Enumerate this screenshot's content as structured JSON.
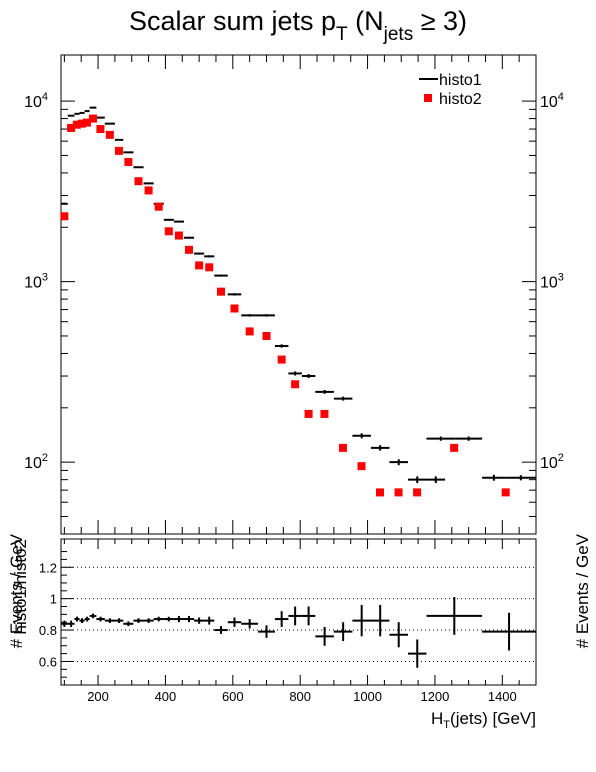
{
  "chart_data": [
    {
      "type": "scatter",
      "panel": "main",
      "title": {
        "prefix": "Scalar sum jets p",
        "sub": "T",
        "mid": " (N",
        "sub2": "jets",
        "suffix": " ≥ 3)"
      },
      "ylabel": "# Events / GeV",
      "ylabel_right": "# Events / GeV",
      "yscale": "log",
      "xlim": [
        90,
        1500
      ],
      "ylim": [
        40,
        18000
      ],
      "y_ticks": [
        {
          "value": 100,
          "base": "10",
          "exp": "2"
        },
        {
          "value": 1000,
          "base": "10",
          "exp": "3"
        },
        {
          "value": 10000,
          "base": "10",
          "exp": "4"
        }
      ],
      "legend_position": "top-right",
      "series": [
        {
          "name": "histo1",
          "style": "errorbar",
          "color": "#000000",
          "points": [
            [
              90,
              110,
              2700
            ],
            [
              110,
              130,
              8300
            ],
            [
              130,
              145,
              8500
            ],
            [
              145,
              160,
              8600
            ],
            [
              160,
              175,
              8800
            ],
            [
              175,
              195,
              9200
            ],
            [
              195,
              220,
              8100
            ],
            [
              220,
              250,
              7500
            ],
            [
              250,
              275,
              6100
            ],
            [
              275,
              305,
              5200
            ],
            [
              305,
              335,
              4300
            ],
            [
              335,
              365,
              3500
            ],
            [
              365,
              395,
              2700
            ],
            [
              395,
              425,
              2200
            ],
            [
              425,
              455,
              2150
            ],
            [
              455,
              485,
              1750
            ],
            [
              485,
              515,
              1430
            ],
            [
              515,
              545,
              1380
            ],
            [
              545,
              585,
              1080
            ],
            [
              585,
              625,
              850
            ],
            [
              625,
              675,
              650
            ],
            [
              675,
              725,
              650
            ],
            [
              725,
              765,
              440
            ],
            [
              765,
              805,
              310
            ],
            [
              805,
              845,
              300
            ],
            [
              845,
              900,
              245
            ],
            [
              900,
              955,
              225
            ],
            [
              955,
              1010,
              140
            ],
            [
              1010,
              1065,
              120
            ],
            [
              1065,
              1120,
              100
            ],
            [
              1120,
              1175,
              80
            ],
            [
              1175,
              1230,
              80
            ],
            [
              1175,
              1260,
              135
            ],
            [
              1260,
              1340,
              135
            ],
            [
              1340,
              1410,
              82
            ],
            [
              1410,
              1500,
              82
            ]
          ]
        },
        {
          "name": "histo2",
          "style": "marker",
          "color": "#ff0000",
          "points": [
            [
              100,
              2300
            ],
            [
              120,
              7100
            ],
            [
              137,
              7400
            ],
            [
              152,
              7500
            ],
            [
              167,
              7600
            ],
            [
              185,
              8000
            ],
            [
              207,
              7000
            ],
            [
              235,
              6500
            ],
            [
              262,
              5300
            ],
            [
              290,
              4600
            ],
            [
              320,
              3600
            ],
            [
              350,
              3200
            ],
            [
              380,
              2600
            ],
            [
              410,
              1900
            ],
            [
              440,
              1800
            ],
            [
              470,
              1500
            ],
            [
              500,
              1230
            ],
            [
              530,
              1200
            ],
            [
              565,
              880
            ],
            [
              605,
              710
            ],
            [
              650,
              530
            ],
            [
              700,
              500
            ],
            [
              745,
              370
            ],
            [
              785,
              270
            ],
            [
              825,
              185
            ],
            [
              872,
              185
            ],
            [
              927,
              120
            ],
            [
              982,
              95
            ],
            [
              1037,
              68
            ],
            [
              1092,
              68
            ],
            [
              1147,
              68
            ],
            [
              1257,
              120
            ],
            [
              1410,
              68
            ]
          ]
        }
      ]
    },
    {
      "type": "scatter",
      "panel": "ratio",
      "xlabel": {
        "prefix": "H",
        "sub": "T",
        "suffix": "(jets) [GeV]"
      },
      "ylabel": "histo1/histo2",
      "yscale": "linear",
      "xlim": [
        90,
        1500
      ],
      "ylim": [
        0.45,
        1.38
      ],
      "x_ticks": [
        "200",
        "400",
        "600",
        "800",
        "1000",
        "1200",
        "1400"
      ],
      "y_ticks": [
        "0.6",
        "0.8",
        "1",
        "1.2"
      ],
      "grid_y": [
        0.6,
        0.8,
        1.0,
        1.2
      ],
      "series": [
        {
          "name": "histo1/histo2",
          "style": "errorbar",
          "color": "#000000",
          "points": [
            [
              90,
              110,
              0.84,
              0.02
            ],
            [
              110,
              130,
              0.84,
              0.02
            ],
            [
              130,
              145,
              0.87,
              0.015
            ],
            [
              145,
              160,
              0.86,
              0.015
            ],
            [
              160,
              175,
              0.87,
              0.015
            ],
            [
              175,
              195,
              0.89,
              0.015
            ],
            [
              195,
              220,
              0.87,
              0.015
            ],
            [
              220,
              250,
              0.86,
              0.015
            ],
            [
              250,
              275,
              0.86,
              0.015
            ],
            [
              275,
              305,
              0.84,
              0.015
            ],
            [
              305,
              335,
              0.86,
              0.015
            ],
            [
              335,
              365,
              0.86,
              0.015
            ],
            [
              365,
              395,
              0.87,
              0.015
            ],
            [
              395,
              425,
              0.87,
              0.015
            ],
            [
              425,
              455,
              0.87,
              0.02
            ],
            [
              455,
              485,
              0.87,
              0.02
            ],
            [
              485,
              515,
              0.86,
              0.02
            ],
            [
              515,
              545,
              0.86,
              0.025
            ],
            [
              545,
              585,
              0.8,
              0.025
            ],
            [
              585,
              625,
              0.85,
              0.03
            ],
            [
              625,
              675,
              0.84,
              0.03
            ],
            [
              675,
              725,
              0.79,
              0.04
            ],
            [
              725,
              765,
              0.87,
              0.05
            ],
            [
              765,
              805,
              0.89,
              0.06
            ],
            [
              805,
              845,
              0.89,
              0.06
            ],
            [
              845,
              900,
              0.76,
              0.06
            ],
            [
              900,
              955,
              0.79,
              0.06
            ],
            [
              955,
              1010,
              0.86,
              0.1
            ],
            [
              1010,
              1065,
              0.86,
              0.1
            ],
            [
              1065,
              1120,
              0.77,
              0.08
            ],
            [
              1120,
              1175,
              0.65,
              0.09
            ],
            [
              1175,
              1340,
              0.89,
              0.12
            ],
            [
              1340,
              1500,
              0.79,
              0.12
            ]
          ]
        }
      ]
    }
  ]
}
